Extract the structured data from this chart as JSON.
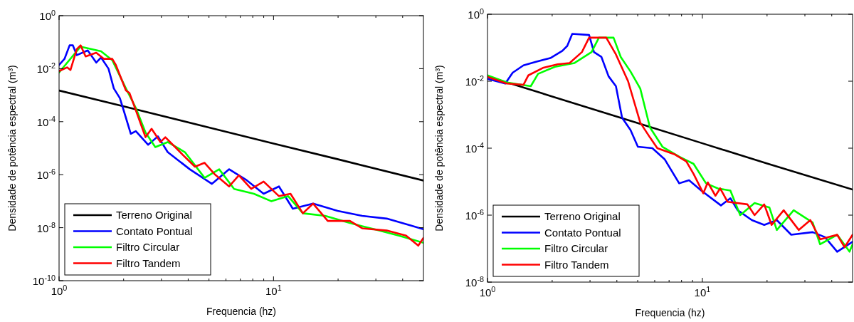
{
  "chart_data": [
    {
      "type": "line",
      "log": "xy",
      "xlabel": "Frequencia (hz)",
      "ylabel": "Densidade de potência espectral (m³)",
      "xlim": [
        1,
        50
      ],
      "ylim": [
        1e-10,
        1
      ],
      "xticks": [
        {
          "value": 1,
          "label": "10$^{0}$"
        },
        {
          "value": 2,
          "label": null
        },
        {
          "value": 3,
          "label": null
        },
        {
          "value": 4,
          "label": null
        },
        {
          "value": 5,
          "label": null
        },
        {
          "value": 6,
          "label": null
        },
        {
          "value": 7,
          "label": null
        },
        {
          "value": 8,
          "label": null
        },
        {
          "value": 9,
          "label": null
        },
        {
          "value": 10,
          "label": "10$^{1}$"
        },
        {
          "value": 20,
          "label": null
        },
        {
          "value": 30,
          "label": null
        },
        {
          "value": 40,
          "label": null
        }
      ],
      "yticks": [
        {
          "value": 1e-10,
          "label": "10$^{-10}$"
        },
        {
          "value": 1e-08,
          "label": "10$^{-8}$"
        },
        {
          "value": 1e-06,
          "label": "10$^{-6}$"
        },
        {
          "value": 0.0001,
          "label": "10$^{-4}$"
        },
        {
          "value": 0.01,
          "label": "10$^{-2}$"
        },
        {
          "value": 1,
          "label": "10$^{0}$"
        }
      ],
      "legend": "bottom left",
      "series": [
        {
          "name": "Terreno Original",
          "color": "#000000",
          "x": [
            1,
            2,
            5,
            10,
            20,
            50
          ],
          "values": [
            0.0015,
            0.00038,
            6e-05,
            1.5e-05,
            3.8e-06,
            6e-07
          ]
        },
        {
          "name": "Contato Pontual",
          "color": "#0000ff",
          "x": [
            1,
            1.06,
            1.12,
            1.16,
            1.21,
            1.36,
            1.49,
            1.57,
            1.7,
            1.8,
            1.92,
            2.0,
            2.16,
            2.28,
            2.6,
            2.89,
            3.21,
            4.07,
            5.16,
            6.21,
            7.49,
            8.99,
            10.6,
            12.3,
            15.3,
            19.9,
            25.9,
            33.7,
            43.9,
            50
          ],
          "values": [
            0.0138,
            0.0234,
            0.0759,
            0.0759,
            0.0324,
            0.049,
            0.017,
            0.0263,
            0.01,
            0.0018,
            0.00078,
            0.00027,
            3.5e-05,
            4.4e-05,
            1.35e-05,
            2.8e-05,
            7.1e-06,
            1.6e-06,
            4.5e-07,
            1.6e-06,
            6.2e-07,
            1.9e-07,
            3.6e-07,
            5.2e-08,
            8.1e-08,
            4.3e-08,
            2.8e-08,
            2.2e-08,
            1.2e-08,
            8.7e-09
          ]
        },
        {
          "name": "Filtro Circular",
          "color": "#00ff00",
          "x": [
            1,
            1.26,
            1.57,
            1.77,
            2.05,
            2.28,
            2.53,
            2.81,
            3.21,
            3.86,
            4.77,
            5.58,
            6.55,
            8.1,
            9.75,
            11.7,
            13.7,
            17.4,
            22.7,
            29.5,
            38.4,
            50
          ],
          "values": [
            0.0072,
            0.068,
            0.045,
            0.021,
            0.0018,
            0.00033,
            3.9e-05,
            1.1e-05,
            1.7e-05,
            7.1e-06,
            7.6e-07,
            1.6e-06,
            2.9e-07,
            1.9e-07,
            1e-07,
            1.55e-07,
            3.5e-08,
            2.8e-08,
            1.5e-08,
            8.7e-09,
            5e-09,
            2.7e-09
          ]
        },
        {
          "name": "Filtro Tandem",
          "color": "#ff0000",
          "x": [
            1,
            1.09,
            1.13,
            1.21,
            1.26,
            1.33,
            1.49,
            1.62,
            1.77,
            1.84,
            2.05,
            2.13,
            2.28,
            2.53,
            2.7,
            2.97,
            3.13,
            3.76,
            4.3,
            4.77,
            5.31,
            6.21,
            6.89,
            7.87,
            8.99,
            10.6,
            12.0,
            13.7,
            15.3,
            17.9,
            22.7,
            25.9,
            33.7,
            41.5,
            47.3,
            50
          ],
          "values": [
            0.0081,
            0.0112,
            0.0089,
            0.055,
            0.076,
            0.029,
            0.04,
            0.0234,
            0.0234,
            0.0138,
            0.0015,
            0.0012,
            0.00027,
            2.6e-05,
            5.4e-05,
            1.7e-05,
            2.6e-05,
            5.8e-06,
            2e-06,
            2.8e-06,
            1.05e-06,
            3.6e-07,
            9.5e-07,
            2.9e-07,
            5.5e-07,
            1.55e-07,
            1.9e-07,
            3.5e-08,
            8.1e-08,
            1.8e-08,
            1.8e-08,
            9.5e-09,
            7.8e-09,
            5e-09,
            2.1e-09,
            4.1e-09
          ]
        }
      ]
    },
    {
      "type": "line",
      "log": "xy",
      "xlabel": "Frequencia (hz)",
      "ylabel": "Densidade de potência espectral (m³)",
      "xlim": [
        1,
        50
      ],
      "ylim": [
        1e-08,
        1
      ],
      "xticks": [
        {
          "value": 1,
          "label": "10$^{0}$"
        },
        {
          "value": 2,
          "label": null
        },
        {
          "value": 3,
          "label": null
        },
        {
          "value": 4,
          "label": null
        },
        {
          "value": 5,
          "label": null
        },
        {
          "value": 6,
          "label": null
        },
        {
          "value": 7,
          "label": null
        },
        {
          "value": 8,
          "label": null
        },
        {
          "value": 9,
          "label": null
        },
        {
          "value": 10,
          "label": "10$^{1}$"
        },
        {
          "value": 20,
          "label": null
        },
        {
          "value": 30,
          "label": null
        },
        {
          "value": 40,
          "label": null
        }
      ],
      "yticks": [
        {
          "value": 1e-08,
          "label": "10$^{-8}$"
        },
        {
          "value": 1e-06,
          "label": "10$^{-6}$"
        },
        {
          "value": 0.0001,
          "label": "10$^{-4}$"
        },
        {
          "value": 0.01,
          "label": "10$^{-2}$"
        },
        {
          "value": 1,
          "label": "10$^{0}$"
        }
      ],
      "legend": "bottom left",
      "series": [
        {
          "name": "Terreno Original",
          "color": "#000000",
          "x": [
            1,
            2,
            5,
            10,
            20,
            50
          ],
          "values": [
            0.014,
            0.0035,
            0.00056,
            0.00014,
            3.5e-05,
            5.8e-06
          ]
        },
        {
          "name": "Contato Pontual",
          "color": "#0000ff",
          "x": [
            1,
            1.21,
            1.31,
            1.47,
            1.68,
            1.96,
            2.23,
            2.35,
            2.48,
            2.97,
            3.13,
            3.39,
            3.66,
            3.96,
            4.23,
            4.63,
            5.01,
            5.85,
            6.67,
            7.8,
            8.67,
            9.88,
            12.2,
            13.5,
            14.6,
            17.0,
            19.4,
            22.2,
            25.9,
            32.6,
            37.2,
            42.4,
            50
          ],
          "values": [
            0.0118,
            0.0085,
            0.018,
            0.0297,
            0.038,
            0.049,
            0.081,
            0.113,
            0.26,
            0.24,
            0.074,
            0.053,
            0.014,
            0.0071,
            0.00081,
            0.00035,
            0.00011,
            0.0001,
            4.7e-05,
            8.9e-06,
            1.1e-05,
            5.4e-06,
            1.95e-06,
            3.2e-06,
            1.4e-06,
            7.1e-07,
            5.1e-07,
            7.1e-07,
            2.6e-07,
            3.1e-07,
            2.2e-07,
            8.1e-08,
            1.6e-07
          ]
        },
        {
          "name": "Filtro Circular",
          "color": "#00ff00",
          "x": [
            1,
            1.23,
            1.59,
            1.72,
            2.06,
            2.54,
            3.05,
            3.3,
            3.86,
            4.17,
            4.63,
            5.14,
            5.7,
            6.52,
            7.8,
            9.1,
            10.4,
            11.8,
            13.5,
            15.0,
            17.5,
            20.5,
            22.2,
            26.6,
            32.6,
            35.3,
            42.4,
            48.4,
            50
          ],
          "values": [
            0.015,
            0.0092,
            0.0071,
            0.0166,
            0.027,
            0.035,
            0.074,
            0.2,
            0.2,
            0.053,
            0.0195,
            0.006,
            0.00042,
            0.00011,
            5.6e-05,
            3.4e-05,
            8.9e-06,
            6.3e-06,
            5.4e-06,
            1e-06,
            2.3e-06,
            1.7e-06,
            3.6e-07,
            1.4e-06,
            6e-07,
            1.35e-07,
            2.6e-07,
            8.1e-08,
            1.35e-07
          ]
        },
        {
          "name": "Filtro Tandem",
          "color": "#ff0000",
          "x": [
            1,
            1.23,
            1.47,
            1.55,
            1.81,
            2.12,
            2.41,
            2.75,
            2.97,
            3.57,
            3.96,
            4.51,
            5.14,
            5.7,
            6.17,
            7.4,
            8.42,
            9.1,
            10.1,
            10.6,
            11.5,
            12.1,
            13.1,
            16.2,
            17.5,
            19.4,
            21.0,
            23.9,
            28.1,
            31.8,
            35.3,
            42.4,
            45.9,
            50
          ],
          "values": [
            0.0135,
            0.0085,
            0.0078,
            0.015,
            0.025,
            0.032,
            0.035,
            0.074,
            0.2,
            0.2,
            0.063,
            0.01,
            0.00058,
            0.00021,
            0.0001,
            6.6e-05,
            4e-05,
            1.7e-05,
            4.5e-06,
            9.5e-06,
            3.8e-06,
            6.3e-06,
            2.5e-06,
            2.1e-06,
            1e-06,
            2.1e-06,
            5.1e-07,
            1.4e-06,
            3.6e-07,
            7.1e-07,
            1.9e-07,
            2.6e-07,
            1.1e-07,
            2.6e-07
          ]
        }
      ]
    }
  ]
}
